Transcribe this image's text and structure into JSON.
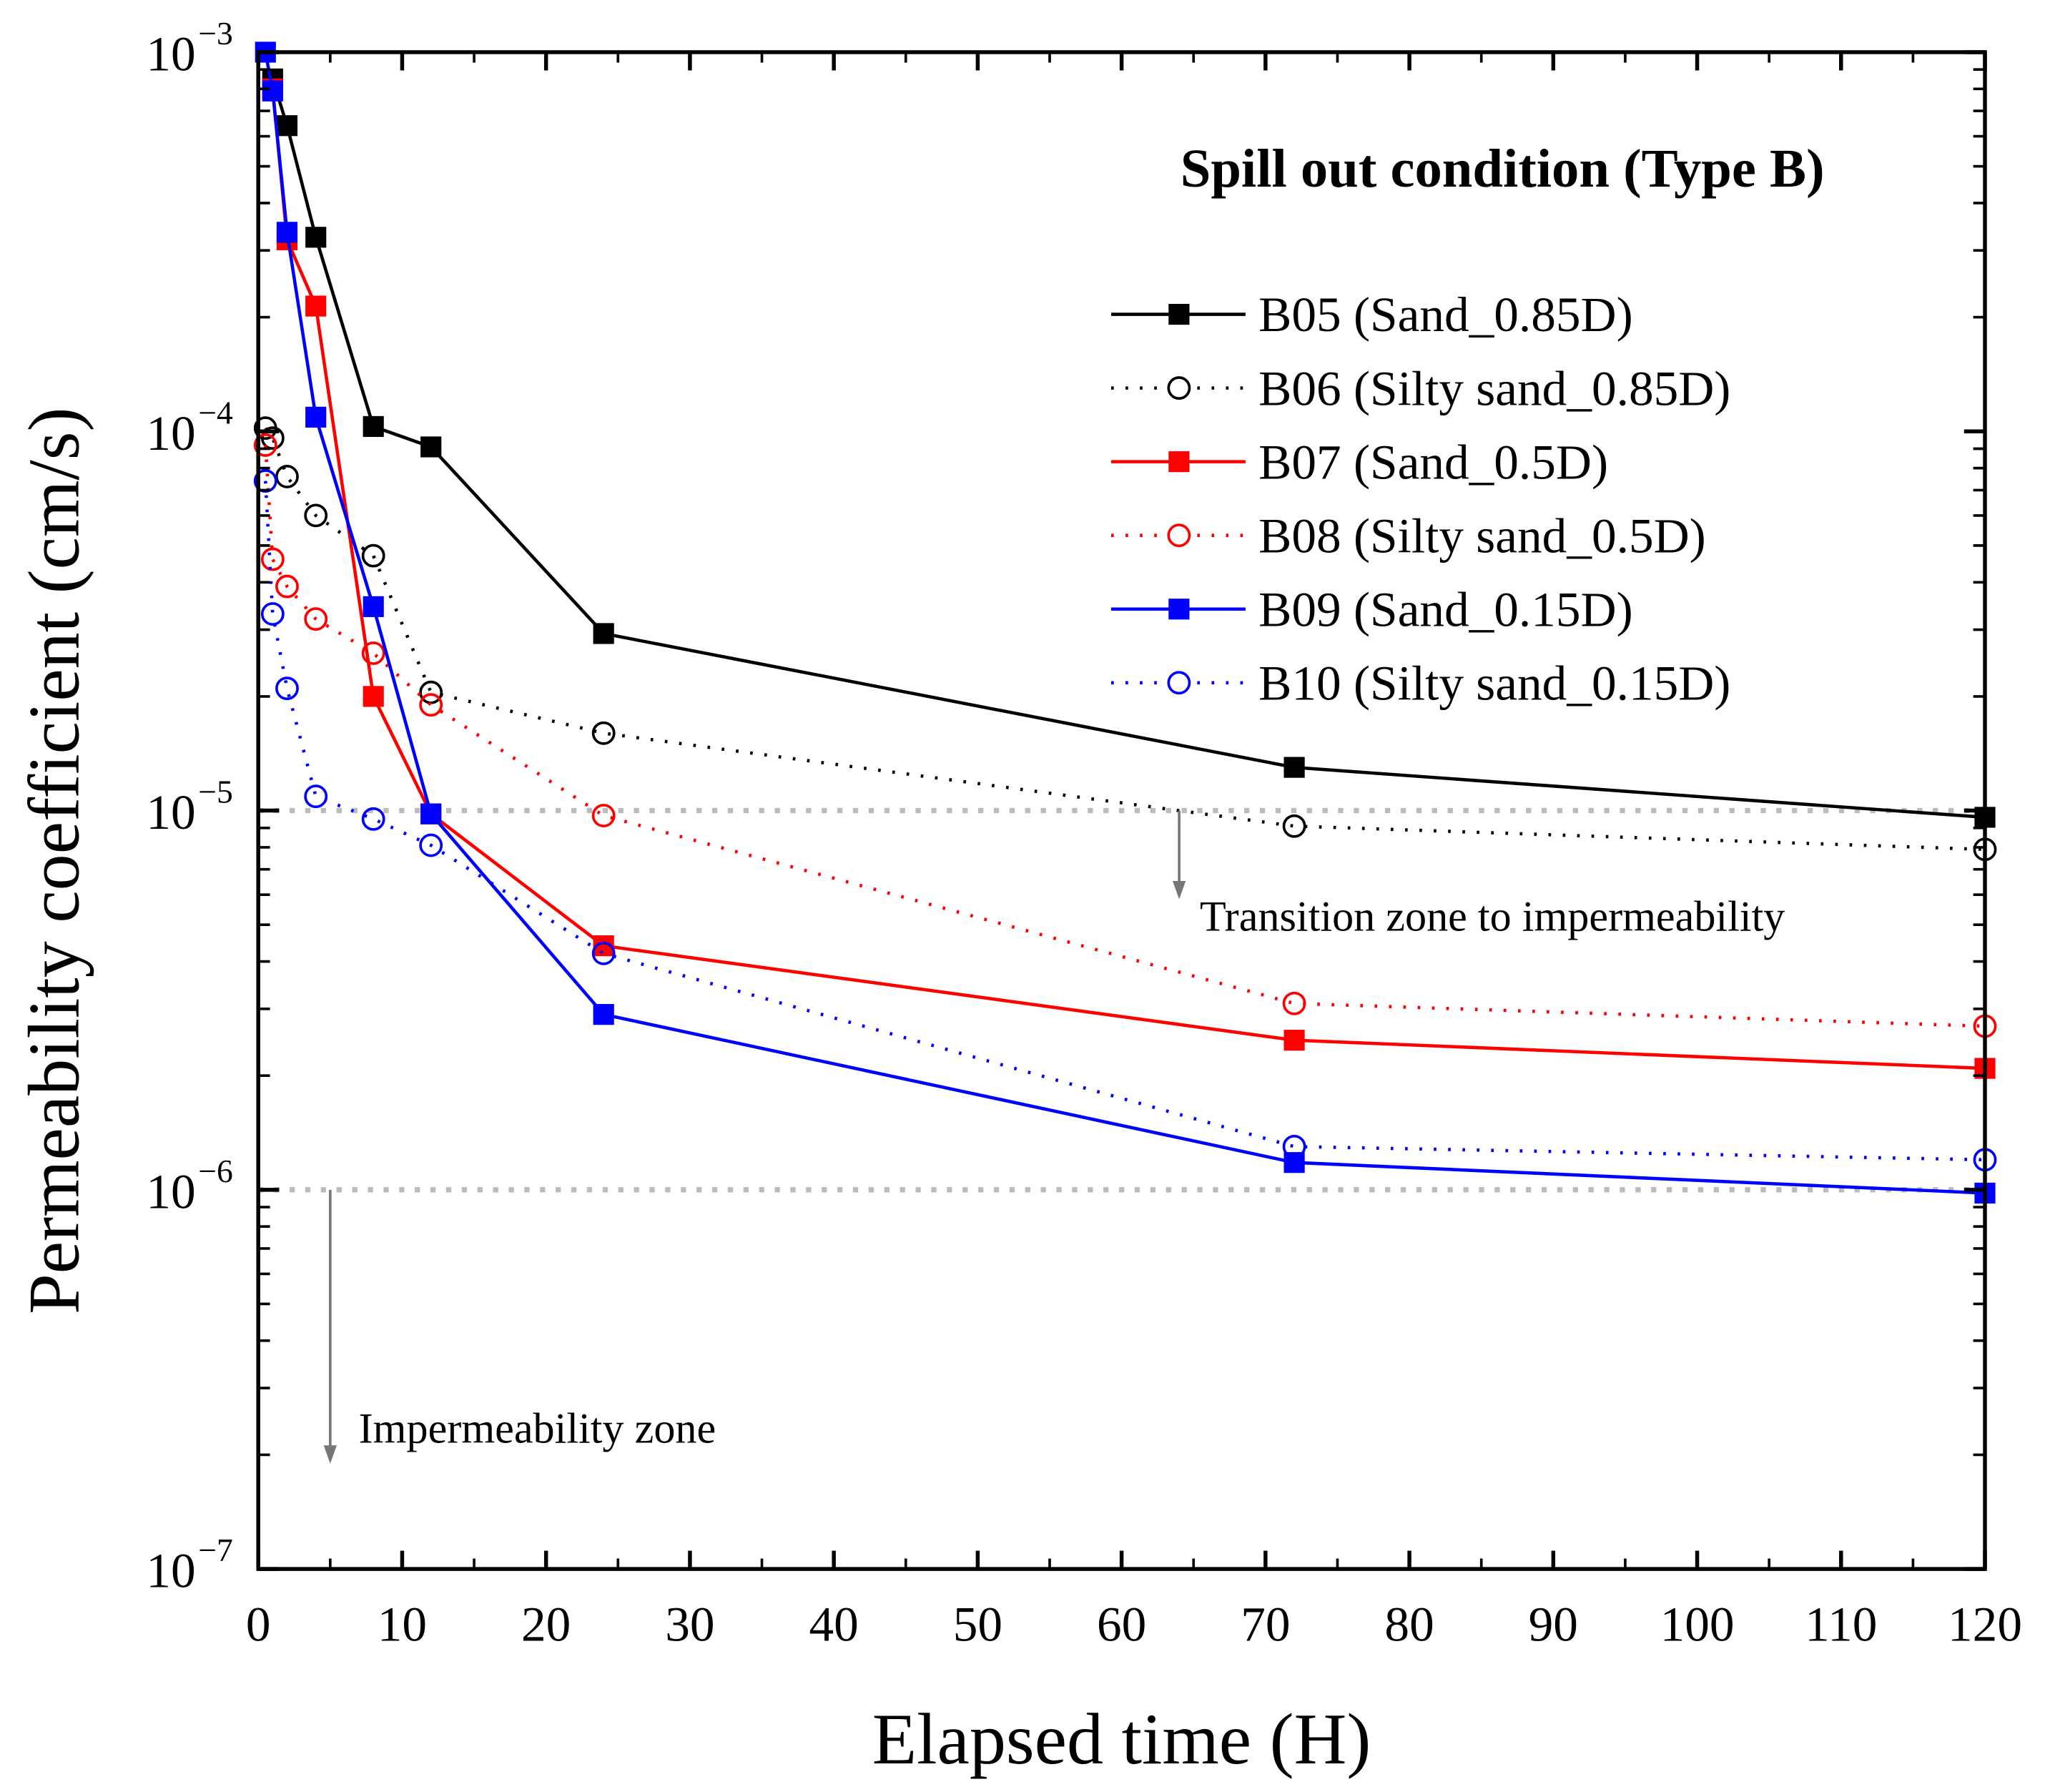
{
  "chart_data": {
    "type": "line",
    "title": "Spill out condition (Type B)",
    "xlabel": "Elapsed time (H)",
    "ylabel": "Permeability coefficient (cm/s)",
    "xlim": [
      0,
      120
    ],
    "ylim": [
      1e-07,
      0.001
    ],
    "yscale": "log",
    "xticks": [
      0,
      10,
      20,
      30,
      40,
      50,
      60,
      70,
      80,
      90,
      100,
      110,
      120
    ],
    "yticks": [
      {
        "base": "10",
        "exp": "−3",
        "value": 0.001
      },
      {
        "base": "10",
        "exp": "−4",
        "value": 0.0001
      },
      {
        "base": "10",
        "exp": "−5",
        "value": 1e-05
      },
      {
        "base": "10",
        "exp": "−6",
        "value": 1e-06
      },
      {
        "base": "10",
        "exp": "−7",
        "value": 1e-07
      }
    ],
    "legend_position": "top-right",
    "series": [
      {
        "name": "B05 (Sand_0.85D)",
        "color": "#000000",
        "marker": "filled-square",
        "line": "solid",
        "x": [
          1,
          2,
          4,
          8,
          12,
          24,
          72,
          120
        ],
        "y": [
          0.00085,
          0.00064,
          0.000325,
          0.000103,
          9.1e-05,
          2.93e-05,
          1.3e-05,
          9.6e-06
        ]
      },
      {
        "name": "B06 (Silty sand_0.85D)",
        "color": "#000000",
        "marker": "open-circle",
        "line": "dotted",
        "x": [
          0.5,
          1,
          2,
          4,
          8,
          12,
          24,
          72,
          120
        ],
        "y": [
          0.000102,
          9.6e-05,
          7.6e-05,
          6e-05,
          4.7e-05,
          2.05e-05,
          1.6e-05,
          9.1e-06,
          7.9e-06
        ]
      },
      {
        "name": "B07 (Sand_0.5D)",
        "color": "#ff0000",
        "marker": "filled-square",
        "line": "solid",
        "x": [
          1,
          2,
          4,
          8,
          12,
          24,
          72,
          120
        ],
        "y": [
          0.0008,
          0.00032,
          0.000214,
          2e-05,
          9.8e-06,
          4.4e-06,
          2.48e-06,
          2.09e-06
        ]
      },
      {
        "name": "B08 (Silty sand_0.5D)",
        "color": "#ff0000",
        "marker": "open-circle",
        "line": "dotted",
        "x": [
          0.5,
          1,
          2,
          4,
          8,
          12,
          24,
          72,
          120
        ],
        "y": [
          9.2e-05,
          4.6e-05,
          3.9e-05,
          3.2e-05,
          2.6e-05,
          1.9e-05,
          9.7e-06,
          3.1e-06,
          2.7e-06
        ]
      },
      {
        "name": "B09 (Sand_0.15D)",
        "color": "#0000ff",
        "marker": "filled-square",
        "line": "solid",
        "x": [
          0.5,
          1,
          2,
          4,
          8,
          12,
          24,
          72,
          120
        ],
        "y": [
          0.001,
          0.00079,
          0.000335,
          0.000109,
          3.45e-05,
          9.8e-06,
          2.9e-06,
          1.18e-06,
          9.8e-07
        ]
      },
      {
        "name": "B10 (Silty sand_0.15D)",
        "color": "#0000ff",
        "marker": "open-circle",
        "line": "dotted",
        "x": [
          0.5,
          1,
          2,
          4,
          8,
          12,
          24,
          72,
          120
        ],
        "y": [
          7.4e-05,
          3.3e-05,
          2.1e-05,
          1.09e-05,
          9.5e-06,
          8.1e-06,
          4.2e-06,
          1.3e-06,
          1.2e-06
        ]
      }
    ],
    "annotations": [
      {
        "text": "Transition zone to impermeability",
        "threshold": 1e-05,
        "arrow_x": 64
      },
      {
        "text": "Impermeability zone",
        "threshold": 1e-06,
        "arrow_x": 5
      }
    ],
    "reference_line_color": "#bbbbbb"
  }
}
